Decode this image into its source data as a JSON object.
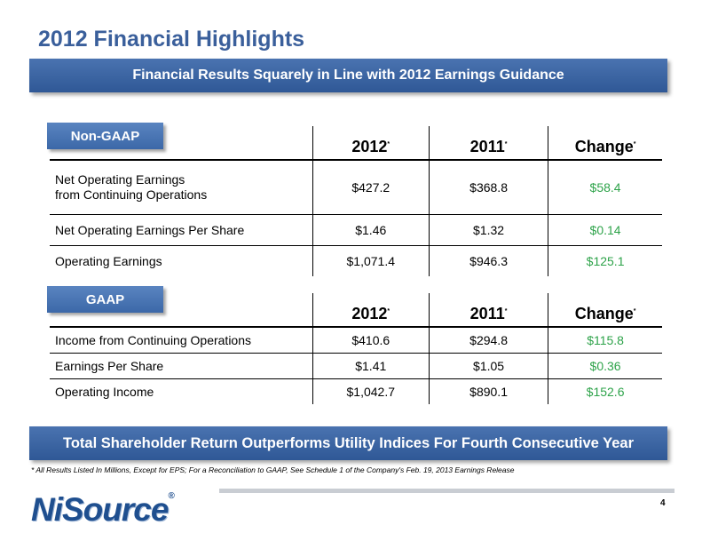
{
  "title": "2012 Financial Highlights",
  "top_banner": "Financial Results Squarely in Line with 2012 Earnings Guidance",
  "non_gaap": {
    "tag": "Non-GAAP",
    "headers": [
      "2012",
      "2011",
      "Change"
    ],
    "header_mark": "*",
    "rows": [
      {
        "label_line1": "Net Operating Earnings",
        "label_line2": "from Continuing Operations",
        "v2012": "$427.2",
        "v2011": "$368.8",
        "change": "$58.4"
      },
      {
        "label": "Net Operating Earnings Per Share",
        "v2012": "$1.46",
        "v2011": "$1.32",
        "change": "$0.14"
      },
      {
        "label": "Operating Earnings",
        "v2012": "$1,071.4",
        "v2011": "$946.3",
        "change": "$125.1"
      }
    ]
  },
  "gaap": {
    "tag": "GAAP",
    "headers": [
      "2012",
      "2011",
      "Change"
    ],
    "header_mark": "*",
    "rows": [
      {
        "label": "Income from Continuing Operations",
        "v2012": "$410.6",
        "v2011": "$294.8",
        "change": "$115.8"
      },
      {
        "label": "Earnings Per Share",
        "v2012": "$1.41",
        "v2011": "$1.05",
        "change": "$0.36"
      },
      {
        "label": "Operating Income",
        "v2012": "$1,042.7",
        "v2011": "$890.1",
        "change": "$152.6"
      }
    ]
  },
  "bottom_banner": "Total Shareholder Return Outperforms Utility Indices For Fourth Consecutive Year",
  "footnote": "* All Results Listed In Millions, Except for EPS;   For a Reconciliation to GAAP, See Schedule 1 of the Company's Feb. 19, 2013 Earnings Release",
  "page_number": "4",
  "logo": {
    "text": "NiSource",
    "registered": "®"
  },
  "colors": {
    "title": "#3a5f9b",
    "banner": "#2f5896",
    "tag": "#3c68a8",
    "change": "#2ea34a",
    "logo": "#1f4f8f"
  }
}
